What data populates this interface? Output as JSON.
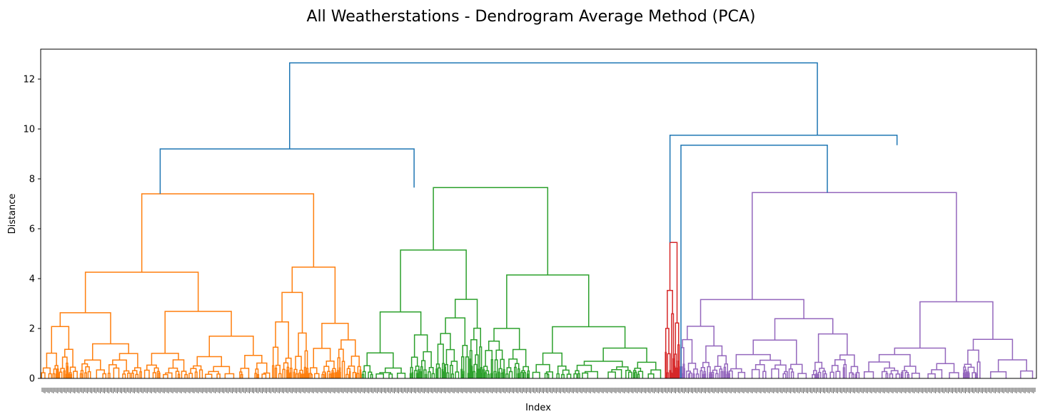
{
  "chart_data": {
    "type": "dendrogram",
    "title": "All Weatherstations - Dendrogram Average Method (PCA)",
    "xlabel": "Index",
    "ylabel": "Distance",
    "ylim": [
      0,
      13.2
    ],
    "yticks": [
      "0",
      "2",
      "4",
      "6",
      "8",
      "10",
      "12"
    ],
    "grid": false,
    "legend": "none",
    "colors": {
      "root": "#1f77b4",
      "orange": "#ff7f0e",
      "green": "#2ca02c",
      "red": "#d62728",
      "purple": "#9467bd"
    },
    "top_links": [
      {
        "left_pos": 0.25,
        "left_h": 9.2,
        "right_pos": 0.78,
        "right_h": 9.75,
        "height": 12.65
      },
      {
        "left_pos": 0.12,
        "left_h": 7.4,
        "right_pos": 0.375,
        "right_h": 7.65,
        "height": 9.2
      },
      {
        "left_pos": 0.632,
        "left_h": 5.45,
        "right_pos": 0.86,
        "right_h": 9.35,
        "height": 9.75
      },
      {
        "left_pos": 0.643,
        "left_h": 0.0,
        "right_pos": 0.79,
        "right_h": 7.45,
        "height": 9.35
      }
    ],
    "clusters": [
      {
        "name": "orange",
        "color": "orange",
        "start": 0.0,
        "end": 0.322,
        "height": 7.4
      },
      {
        "name": "green",
        "color": "green",
        "start": 0.322,
        "end": 0.627,
        "height": 7.65
      },
      {
        "name": "red",
        "color": "red",
        "start": 0.627,
        "end": 0.642,
        "height": 5.45
      },
      {
        "name": "purple",
        "color": "purple",
        "start": 0.642,
        "end": 1.0,
        "height": 7.45
      }
    ],
    "leaf_count": 2000
  }
}
